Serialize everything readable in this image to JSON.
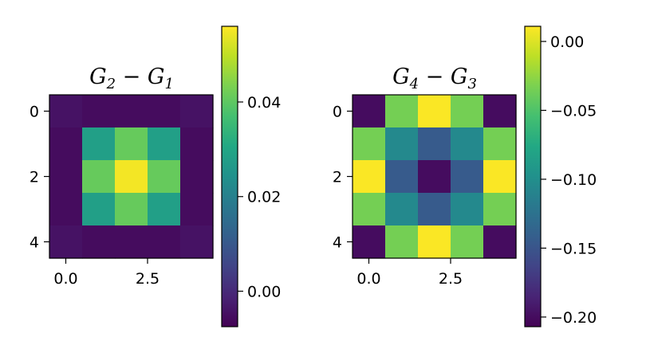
{
  "chart_data": [
    {
      "type": "heatmap",
      "title": "G₂ − G₁",
      "title_parts": [
        "G",
        "2",
        " − ",
        "G",
        "1"
      ],
      "colormap": "viridis",
      "values": [
        [
          -0.0045,
          -0.0055,
          -0.0055,
          -0.0055,
          -0.0045
        ],
        [
          -0.0055,
          0.028,
          0.041,
          0.028,
          -0.0055
        ],
        [
          -0.0055,
          0.041,
          0.055,
          0.041,
          -0.0055
        ],
        [
          -0.0055,
          0.028,
          0.041,
          0.028,
          -0.0055
        ],
        [
          -0.0045,
          -0.0055,
          -0.0055,
          -0.0055,
          -0.0045
        ]
      ],
      "xticks": [
        0.0,
        2.5
      ],
      "xtick_labels": [
        "0.0",
        "2.5"
      ],
      "yticks": [
        0,
        2,
        4
      ],
      "ytick_labels": [
        "0",
        "2",
        "4"
      ],
      "colorbar": {
        "min": -0.0075,
        "max": 0.056,
        "ticks": [
          0.0,
          0.02,
          0.04
        ],
        "tick_labels": [
          "0.00",
          "0.02",
          "0.04"
        ]
      }
    },
    {
      "type": "heatmap",
      "title": "G₄ − G₃",
      "title_parts": [
        "G",
        "4",
        " − ",
        "G",
        "3"
      ],
      "colormap": "viridis",
      "values": [
        [
          -0.2,
          -0.035,
          0.01,
          -0.035,
          -0.2
        ],
        [
          -0.035,
          -0.105,
          -0.145,
          -0.105,
          -0.035
        ],
        [
          0.01,
          -0.145,
          -0.2,
          -0.145,
          0.01
        ],
        [
          -0.035,
          -0.105,
          -0.145,
          -0.105,
          -0.035
        ],
        [
          -0.2,
          -0.035,
          0.01,
          -0.035,
          -0.2
        ]
      ],
      "xticks": [
        0.0,
        2.5
      ],
      "xtick_labels": [
        "0.0",
        "2.5"
      ],
      "yticks": [
        0,
        2,
        4
      ],
      "ytick_labels": [
        "0",
        "2",
        "4"
      ],
      "colorbar": {
        "min": -0.207,
        "max": 0.011,
        "ticks": [
          0.0,
          -0.05,
          -0.1,
          -0.15,
          -0.2
        ],
        "tick_labels": [
          "0.00",
          "−0.05",
          "−0.10",
          "−0.15",
          "−0.20"
        ]
      }
    }
  ]
}
